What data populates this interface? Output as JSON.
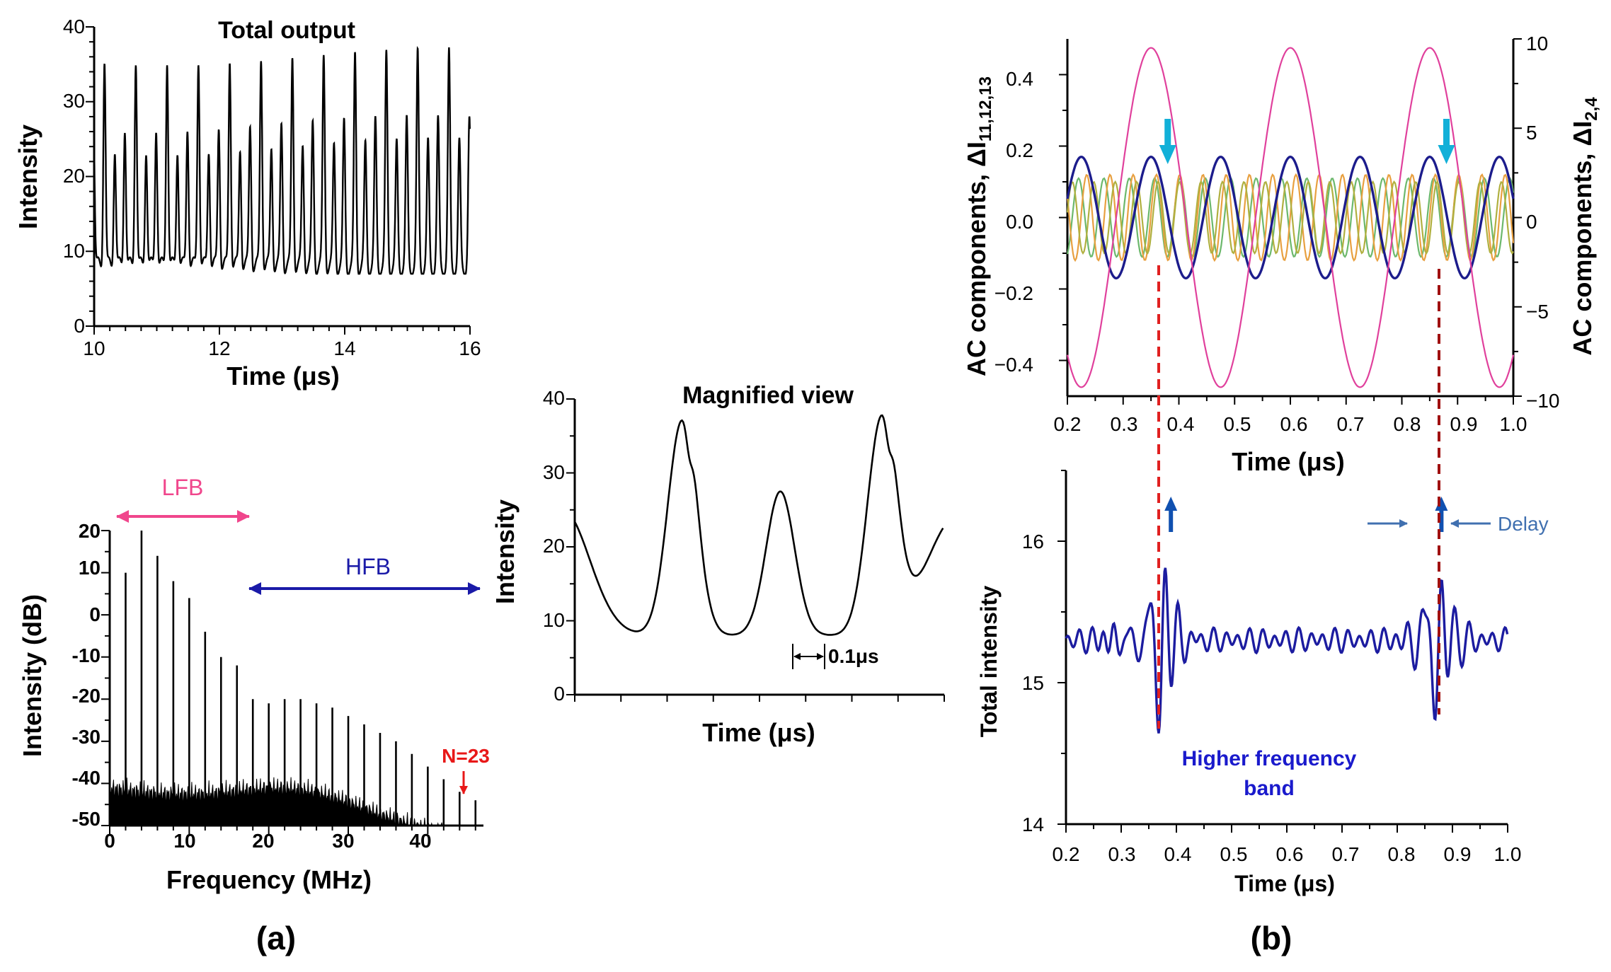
{
  "colors": {
    "axis": "#000000",
    "trace": "#000000",
    "lfb": "#f0468c",
    "hfb": "#1a1aa8",
    "n23": "#e81818",
    "navy": "#1c1c8c",
    "magenta": "#e0409c",
    "cyan": "#12b0d8",
    "green": "#6cb86c",
    "orange": "#e8a040",
    "olive": "#b0b040",
    "red_dash": "#e02020",
    "darkred_dash": "#a01010",
    "steel": "#4070b0",
    "blue_arrow": "#1050b0",
    "total_int": "#1c1ca0"
  },
  "chart_data": [
    {
      "id": "total-output",
      "type": "line",
      "title": "Total output",
      "xlabel": "Time (μs)",
      "ylabel": "Intensity",
      "xlim": [
        10,
        16
      ],
      "ylim": [
        0,
        40
      ],
      "xticks": [
        "10",
        "12",
        "14",
        "16"
      ],
      "yticks": [
        "0",
        "10",
        "20",
        "30",
        "40"
      ],
      "period_us": 0.5,
      "peaks": [
        36,
        24,
        27
      ],
      "baseline": 8
    },
    {
      "id": "magnified-view",
      "type": "line",
      "title": "Magnified view",
      "xlabel": "Time (μs)",
      "ylabel": "Intensity",
      "ylim": [
        0,
        40
      ],
      "yticks": [
        "0",
        "10",
        "20",
        "30",
        "40"
      ],
      "annotation": "0.1μs",
      "peaks": [
        37,
        27.5,
        37
      ],
      "baseline": 8
    },
    {
      "id": "spectrum",
      "type": "bar",
      "xlabel": "Frequency (MHz)",
      "ylabel": "Intensity (dB)",
      "xlim": [
        0,
        47
      ],
      "ylim": [
        -50,
        20
      ],
      "xticks": [
        "0",
        "10",
        "20",
        "30",
        "40"
      ],
      "yticks": [
        "20",
        "10",
        "0",
        "-10",
        "-20",
        "-30",
        "-40",
        "-50"
      ],
      "fundamental_mhz": 2,
      "harmonics": [
        10,
        20,
        14,
        8,
        4,
        -4,
        -10,
        -12,
        -20,
        -21,
        -20,
        -20,
        -21,
        -22,
        -24,
        -26,
        -28,
        -30,
        -33,
        -36,
        -39,
        -42,
        -44
      ],
      "labels": {
        "lfb": "LFB",
        "hfb": "HFB",
        "n": "N=23"
      },
      "panel_label": "(a)"
    },
    {
      "id": "ac-components",
      "type": "line",
      "xlabel": "Time (μs)",
      "ylabel": "AC components, ΔI",
      "ylabel_sub": "11,12,13",
      "ylabel_right": "AC components, ΔI",
      "ylabel_right_sub": "2,4",
      "xlim": [
        0.2,
        1.0
      ],
      "ylim": [
        -0.5,
        0.5
      ],
      "ylim_right": [
        -10,
        10
      ],
      "xticks": [
        "0.2",
        "0.3",
        "0.4",
        "0.5",
        "0.6",
        "0.7",
        "0.8",
        "0.9",
        "1.0"
      ],
      "yticks": [
        "−0.4",
        "−0.2",
        "0.0",
        "0.2",
        "0.4"
      ],
      "yticks_right": [
        "−10",
        "−5",
        "0",
        "5",
        "10"
      ],
      "series": [
        {
          "name": "ΔI2",
          "axis": "right",
          "amp": 9.5,
          "period_us": 0.25,
          "peak_us": 0.35
        },
        {
          "name": "ΔI4",
          "axis": "right",
          "amp": 3.4,
          "period_us": 0.125,
          "peak_us": 0.35
        },
        {
          "name": "ΔI11",
          "axis": "left",
          "amp": 0.11,
          "period_us": 0.0455
        },
        {
          "name": "ΔI12",
          "axis": "left",
          "amp": 0.12,
          "period_us": 0.0417
        },
        {
          "name": "ΔI13",
          "axis": "left",
          "amp": 0.1,
          "period_us": 0.0385
        }
      ]
    },
    {
      "id": "total-intensity",
      "type": "line",
      "xlabel": "Time (μs)",
      "ylabel": "Total intensity",
      "xlim": [
        0.2,
        1.0
      ],
      "ylim": [
        14,
        16.5
      ],
      "xticks": [
        "0.2",
        "0.3",
        "0.4",
        "0.5",
        "0.6",
        "0.7",
        "0.8",
        "0.9",
        "1.0"
      ],
      "yticks": [
        "14",
        "15",
        "16"
      ],
      "baseline": 15.3,
      "burst_centers_us": [
        0.37,
        0.87
      ],
      "annotation": "Higher frequency",
      "annotation_line2": "band",
      "delay_label": "Delay",
      "panel_label": "(b)"
    }
  ]
}
